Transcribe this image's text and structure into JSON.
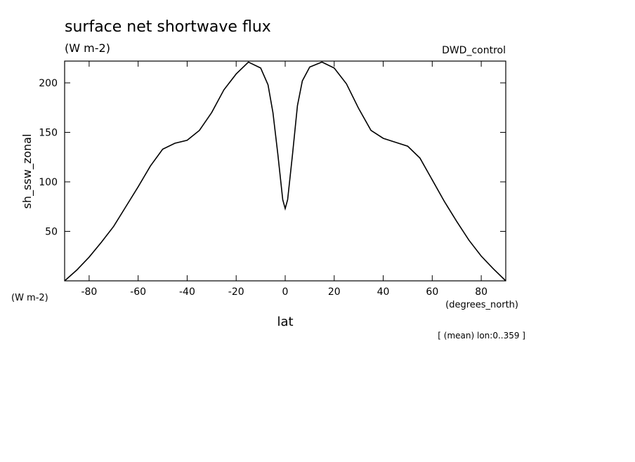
{
  "chart_data": {
    "type": "line",
    "title": "surface net shortwave flux",
    "subtitle": "(W m-2)",
    "dataset": "DWD_control",
    "ylabel": "sh_ssw_zonal",
    "yunits": "(W m-2)",
    "xlabel": "lat",
    "xunits": "(degrees_north)",
    "note": "[ (mean) lon:0..359 ]",
    "x": [
      -90,
      -85,
      -80,
      -75,
      -70,
      -65,
      -60,
      -55,
      -50,
      -45,
      -40,
      -35,
      -30,
      -25,
      -20,
      -15,
      -10,
      -7,
      -5,
      -3,
      -1,
      0,
      1,
      3,
      5,
      7,
      10,
      15,
      20,
      25,
      30,
      35,
      40,
      45,
      50,
      55,
      60,
      65,
      70,
      75,
      80,
      85,
      90
    ],
    "series": [
      {
        "color": "#000000",
        "values": [
          0,
          11,
          24,
          39,
          55,
          75,
          95,
          116,
          133,
          139,
          142,
          152,
          170,
          193,
          209,
          221,
          215,
          198,
          170,
          128,
          82,
          73,
          82,
          128,
          177,
          202,
          216,
          221,
          215,
          199,
          174,
          152,
          144,
          140,
          136,
          124,
          102,
          80,
          60,
          41,
          25,
          12,
          0
        ]
      }
    ],
    "xlim": [
      -90,
      90
    ],
    "xticks": [
      -80,
      -60,
      -40,
      -20,
      0,
      20,
      40,
      60,
      80
    ],
    "ylim": [
      0,
      222
    ],
    "yticks": [
      50,
      100,
      150,
      200
    ]
  }
}
